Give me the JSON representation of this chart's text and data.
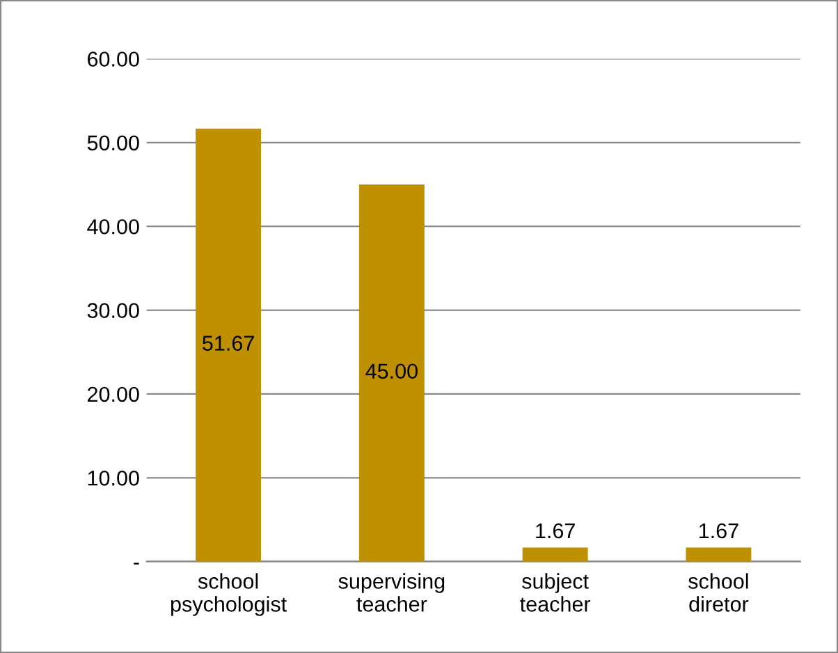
{
  "chart_data": {
    "type": "bar",
    "categories": [
      "school\npsychologist",
      "supervising\nteacher",
      "subject\nteacher",
      "school\ndiretor"
    ],
    "values": [
      51.67,
      45.0,
      1.67,
      1.67
    ],
    "value_labels": [
      "51.67",
      "45.00",
      "1.67",
      "1.67"
    ],
    "color": "#bf9000",
    "ylim": [
      0,
      60
    ],
    "yticks": [
      {
        "value": 0,
        "label": "-"
      },
      {
        "value": 10,
        "label": "10.00"
      },
      {
        "value": 20,
        "label": "20.00"
      },
      {
        "value": 30,
        "label": "30.00"
      },
      {
        "value": 40,
        "label": "40.00"
      },
      {
        "value": 50,
        "label": "50.00"
      },
      {
        "value": 60,
        "label": "60.00"
      }
    ],
    "grid": "y",
    "legend": false
  }
}
